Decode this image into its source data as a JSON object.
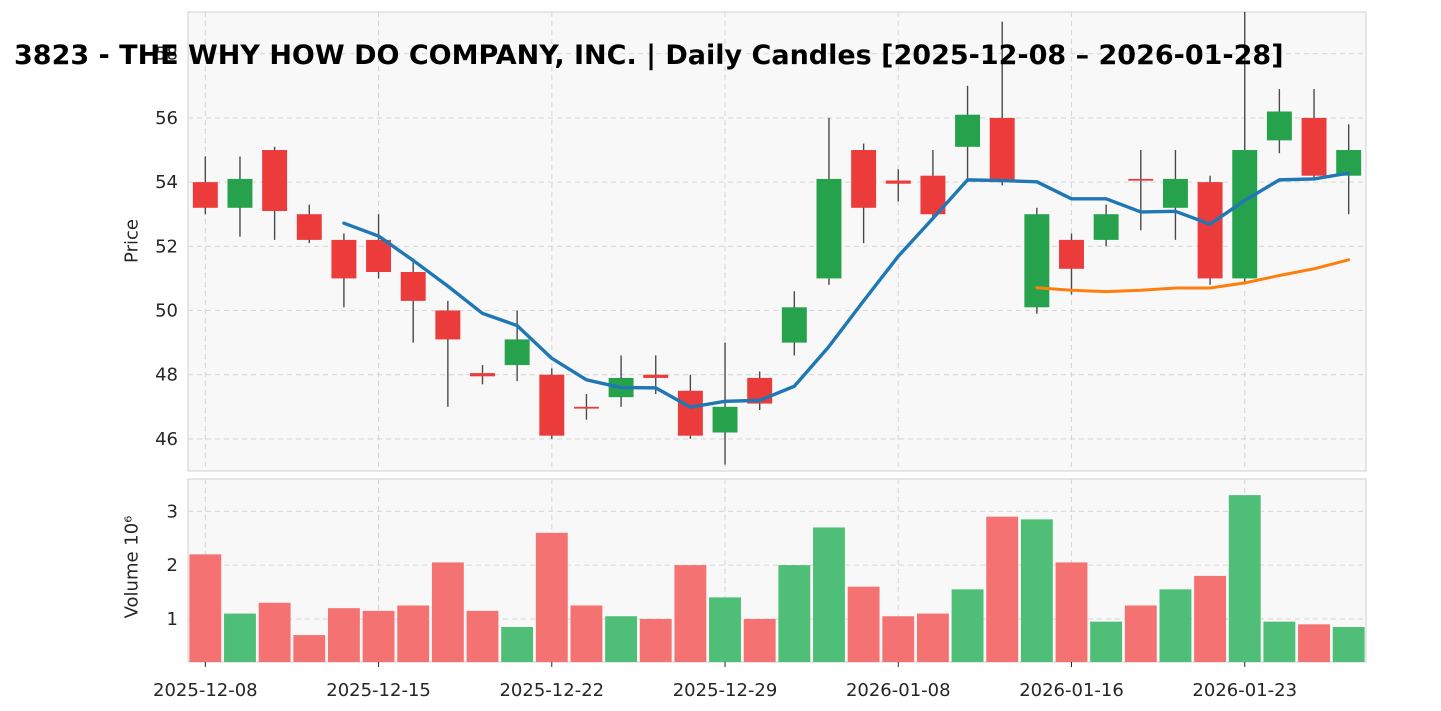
{
  "title": "3823 - THE WHY HOW DO COMPANY, INC. | Daily Candles [2025-12-08 – 2026-01-28]",
  "chart_data": {
    "type": "candlestick",
    "title": "3823 - THE WHY HOW DO COMPANY, INC. | Daily Candles [2025-12-08 – 2026-01-28]",
    "grid": true,
    "legend_position": "none",
    "x": {
      "tick_indices": [
        0,
        5,
        10,
        15,
        20,
        25,
        30
      ],
      "tick_labels": [
        "2025-12-08",
        "2025-12-15",
        "2025-12-22",
        "2025-12-29",
        "2026-01-08",
        "2026-01-16",
        "2026-01-23"
      ]
    },
    "price": {
      "ylabel": "Price",
      "ylim": [
        45.0,
        59.3
      ],
      "yticks": [
        46,
        48,
        50,
        52,
        54,
        56,
        58
      ]
    },
    "volume": {
      "ylabel": "Volume  10⁶",
      "ylim_millions": [
        0.2,
        3.6
      ],
      "yticks": [
        1,
        2,
        3
      ]
    },
    "candles": [
      {
        "date": "2025-12-08",
        "open": 54.0,
        "high": 54.8,
        "low": 53.0,
        "close": 53.2,
        "volume_m": 2.2
      },
      {
        "date": "2025-12-09",
        "open": 53.2,
        "high": 54.8,
        "low": 52.3,
        "close": 54.1,
        "volume_m": 1.1
      },
      {
        "date": "2025-12-10",
        "open": 55.0,
        "high": 55.1,
        "low": 52.2,
        "close": 53.1,
        "volume_m": 1.3
      },
      {
        "date": "2025-12-11",
        "open": 53.0,
        "high": 53.3,
        "low": 52.1,
        "close": 52.2,
        "volume_m": 0.7
      },
      {
        "date": "2025-12-12",
        "open": 52.2,
        "high": 52.4,
        "low": 50.1,
        "close": 51.0,
        "volume_m": 1.2
      },
      {
        "date": "2025-12-15",
        "open": 52.2,
        "high": 53.0,
        "low": 51.0,
        "close": 51.2,
        "volume_m": 1.15
      },
      {
        "date": "2025-12-16",
        "open": 51.2,
        "high": 51.6,
        "low": 49.0,
        "close": 50.3,
        "volume_m": 1.25
      },
      {
        "date": "2025-12-17",
        "open": 50.0,
        "high": 50.3,
        "low": 47.0,
        "close": 49.1,
        "volume_m": 2.05
      },
      {
        "date": "2025-12-18",
        "open": 48.05,
        "high": 48.3,
        "low": 47.7,
        "close": 47.95,
        "volume_m": 1.15
      },
      {
        "date": "2025-12-19",
        "open": 48.3,
        "high": 50.0,
        "low": 47.8,
        "close": 49.1,
        "volume_m": 0.85
      },
      {
        "date": "2025-12-22",
        "open": 48.0,
        "high": 48.2,
        "low": 46.0,
        "close": 46.1,
        "volume_m": 2.6
      },
      {
        "date": "2025-12-23",
        "open": 47.0,
        "high": 47.4,
        "low": 46.6,
        "close": 46.95,
        "volume_m": 1.25
      },
      {
        "date": "2025-12-24",
        "open": 47.3,
        "high": 48.6,
        "low": 47.0,
        "close": 47.9,
        "volume_m": 1.05
      },
      {
        "date": "2025-12-25",
        "open": 48.0,
        "high": 48.6,
        "low": 47.4,
        "close": 47.9,
        "volume_m": 1.0
      },
      {
        "date": "2025-12-26",
        "open": 47.5,
        "high": 48.0,
        "low": 46.0,
        "close": 46.1,
        "volume_m": 2.0
      },
      {
        "date": "2025-12-29",
        "open": 46.2,
        "high": 49.0,
        "low": 45.2,
        "close": 47.0,
        "volume_m": 1.4
      },
      {
        "date": "2025-12-30",
        "open": 47.9,
        "high": 48.1,
        "low": 46.9,
        "close": 47.1,
        "volume_m": 1.0
      },
      {
        "date": "2026-01-05",
        "open": 49.0,
        "high": 50.6,
        "low": 48.6,
        "close": 50.1,
        "volume_m": 2.0
      },
      {
        "date": "2026-01-06",
        "open": 51.0,
        "high": 56.0,
        "low": 50.8,
        "close": 54.1,
        "volume_m": 2.7
      },
      {
        "date": "2026-01-07",
        "open": 55.0,
        "high": 55.2,
        "low": 52.1,
        "close": 53.2,
        "volume_m": 1.6
      },
      {
        "date": "2026-01-08",
        "open": 54.05,
        "high": 54.4,
        "low": 53.4,
        "close": 53.95,
        "volume_m": 1.05
      },
      {
        "date": "2026-01-09",
        "open": 54.2,
        "high": 55.0,
        "low": 52.9,
        "close": 53.0,
        "volume_m": 1.1
      },
      {
        "date": "2026-01-13",
        "open": 55.1,
        "high": 57.0,
        "low": 54.0,
        "close": 56.1,
        "volume_m": 1.55
      },
      {
        "date": "2026-01-14",
        "open": 56.0,
        "high": 59.0,
        "low": 53.9,
        "close": 54.0,
        "volume_m": 2.9
      },
      {
        "date": "2026-01-15",
        "open": 50.1,
        "high": 53.2,
        "low": 49.9,
        "close": 53.0,
        "volume_m": 2.85
      },
      {
        "date": "2026-01-16",
        "open": 52.2,
        "high": 52.4,
        "low": 50.5,
        "close": 51.3,
        "volume_m": 2.05
      },
      {
        "date": "2026-01-19",
        "open": 52.2,
        "high": 53.3,
        "low": 52.0,
        "close": 53.0,
        "volume_m": 0.95
      },
      {
        "date": "2026-01-20",
        "open": 54.1,
        "high": 55.0,
        "low": 52.5,
        "close": 54.05,
        "volume_m": 1.25
      },
      {
        "date": "2026-01-21",
        "open": 53.2,
        "high": 55.0,
        "low": 52.2,
        "close": 54.1,
        "volume_m": 1.55
      },
      {
        "date": "2026-01-22",
        "open": 54.0,
        "high": 54.2,
        "low": 50.8,
        "close": 51.0,
        "volume_m": 1.8
      },
      {
        "date": "2026-01-23",
        "open": 51.0,
        "high": 59.3,
        "low": 50.9,
        "close": 55.0,
        "volume_m": 3.3
      },
      {
        "date": "2026-01-26",
        "open": 55.3,
        "high": 56.9,
        "low": 54.9,
        "close": 56.2,
        "volume_m": 0.95
      },
      {
        "date": "2026-01-27",
        "open": 56.0,
        "high": 56.9,
        "low": 54.1,
        "close": 54.2,
        "volume_m": 0.9
      },
      {
        "date": "2026-01-28",
        "open": 54.2,
        "high": 55.8,
        "low": 53.0,
        "close": 55.0,
        "volume_m": 0.85
      }
    ],
    "overlays": [
      {
        "name": "MA5",
        "type": "sma",
        "window": 5,
        "color": "#1f77b4",
        "values": [
          null,
          null,
          null,
          null,
          52.72,
          52.32,
          51.56,
          50.76,
          49.91,
          49.53,
          48.51,
          47.84,
          47.6,
          47.59,
          46.99,
          47.17,
          47.2,
          47.64,
          48.88,
          50.3,
          51.69,
          52.87,
          54.07,
          54.05,
          54.01,
          53.48,
          53.48,
          53.07,
          53.09,
          52.69,
          53.43,
          54.07,
          54.1,
          54.28
        ]
      },
      {
        "name": "MA25",
        "type": "sma",
        "window": 25,
        "color": "#ff7f0e",
        "values": [
          null,
          null,
          null,
          null,
          null,
          null,
          null,
          null,
          null,
          null,
          null,
          null,
          null,
          null,
          null,
          null,
          null,
          null,
          null,
          null,
          null,
          null,
          null,
          null,
          50.71,
          50.63,
          50.59,
          50.63,
          50.7,
          50.7,
          50.86,
          51.09,
          51.3,
          51.58
        ]
      }
    ],
    "colors": {
      "up": "#26a24d",
      "down": "#ec3b3b",
      "volume_up": "#4fbe77",
      "volume_down": "#f47272",
      "wick": "#4a4a4a",
      "grid": "#d7d7d7",
      "spine": "#d0d0d0",
      "panel_bg": "#f8f8f8",
      "tick_text": "#262626",
      "ma5": "#1f77b4",
      "ma25": "#ff7f0e"
    }
  }
}
